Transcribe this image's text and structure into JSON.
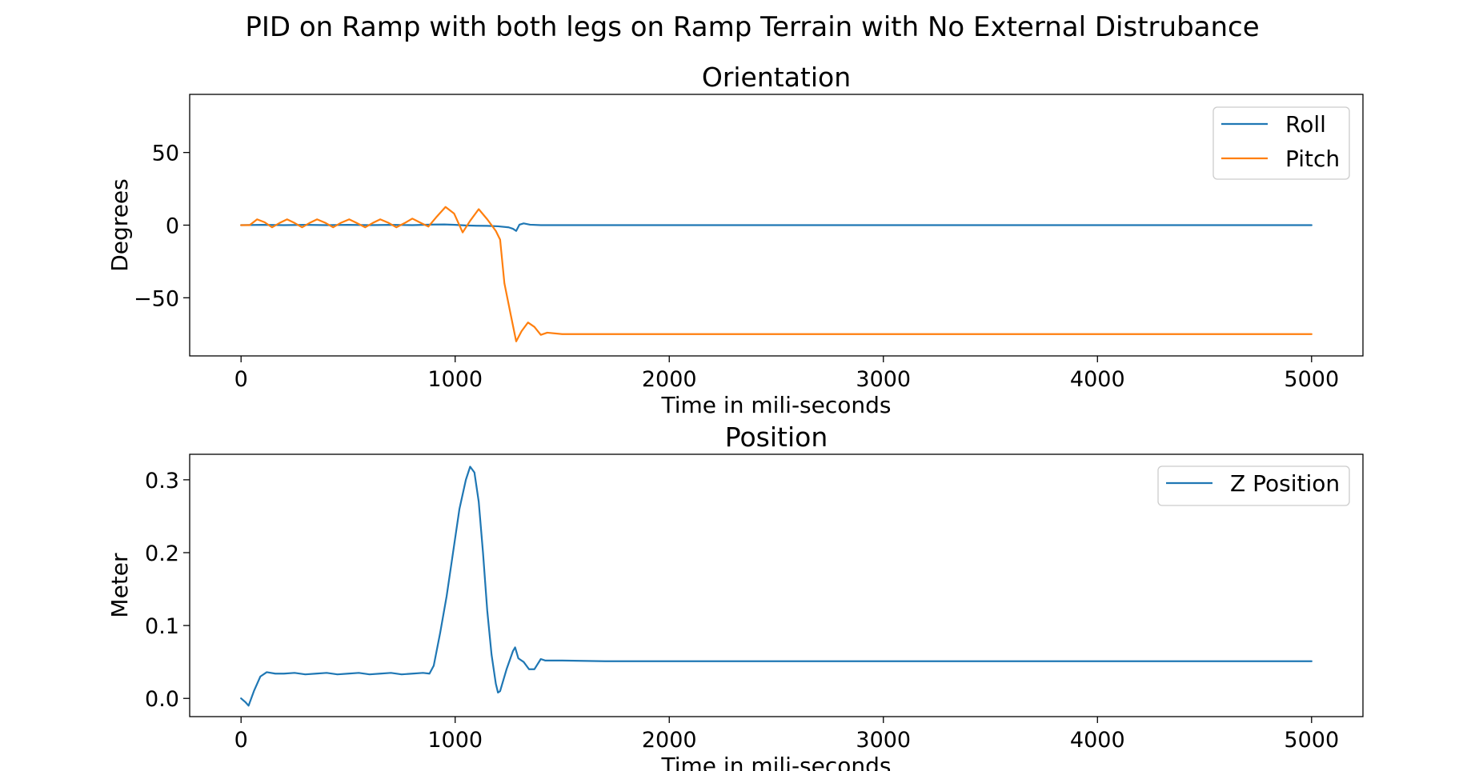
{
  "figure": {
    "title": "PID on Ramp with both legs on Ramp Terrain with No External Distrubance"
  },
  "colors": {
    "roll": "#1f77b4",
    "pitch": "#ff7f0e",
    "z_position": "#1f77b4",
    "axes": "#000000"
  },
  "chart_data": [
    {
      "type": "line",
      "title": "Orientation",
      "xlabel": "Time in mili-seconds",
      "ylabel": "Degrees",
      "xlim": [
        -240,
        5240
      ],
      "ylim": [
        -90,
        90
      ],
      "xticks": [
        0,
        1000,
        2000,
        3000,
        4000,
        5000
      ],
      "xtick_labels": [
        "0",
        "1000",
        "2000",
        "3000",
        "4000",
        "5000"
      ],
      "yticks": [
        50,
        0,
        -50
      ],
      "ytick_labels": [
        "50",
        "0",
        "−50"
      ],
      "grid": false,
      "legend_position": "top-right",
      "series": [
        {
          "name": "Roll",
          "color": "#1f77b4",
          "x": [
            0,
            100,
            200,
            300,
            400,
            500,
            600,
            700,
            800,
            900,
            950,
            1000,
            1050,
            1100,
            1150,
            1200,
            1250,
            1270,
            1285,
            1300,
            1320,
            1350,
            1400,
            1450,
            1500,
            2000,
            3000,
            4000,
            5000
          ],
          "y": [
            0,
            0.2,
            0,
            0.2,
            0,
            0.2,
            0,
            0.2,
            0,
            0.4,
            0.5,
            0.2,
            -0.2,
            -0.4,
            -0.5,
            -0.8,
            -1.5,
            -2.5,
            -4,
            0.3,
            1.2,
            0.3,
            0,
            0,
            0,
            0,
            0,
            0,
            0
          ]
        },
        {
          "name": "Pitch",
          "color": "#ff7f0e",
          "x": [
            0,
            40,
            75,
            110,
            145,
            180,
            215,
            250,
            285,
            320,
            355,
            395,
            430,
            465,
            505,
            540,
            580,
            615,
            650,
            690,
            725,
            765,
            800,
            840,
            875,
            915,
            955,
            995,
            1035,
            1070,
            1110,
            1150,
            1170,
            1190,
            1210,
            1230,
            1260,
            1285,
            1310,
            1340,
            1370,
            1400,
            1430,
            1500,
            1700,
            2000,
            3000,
            4000,
            5000
          ],
          "y": [
            0,
            0,
            4,
            2,
            -1.5,
            1.5,
            4,
            1.5,
            -1.5,
            1.5,
            4,
            1.5,
            -1.5,
            1.5,
            4,
            1.5,
            -1.5,
            1.5,
            4,
            1.5,
            -1.5,
            1.5,
            4.5,
            1.5,
            -1,
            6,
            12.5,
            8,
            -5,
            3,
            11,
            4,
            0,
            -4,
            -10,
            -40,
            -62,
            -80,
            -73,
            -67,
            -70,
            -75.5,
            -74,
            -75,
            -75,
            -75,
            -75,
            -75,
            -75
          ]
        }
      ]
    },
    {
      "type": "line",
      "title": "Position",
      "xlabel": "Time in mili-seconds",
      "ylabel": "Meter",
      "xlim": [
        -240,
        5240
      ],
      "ylim": [
        -0.025,
        0.335
      ],
      "xticks": [
        0,
        1000,
        2000,
        3000,
        4000,
        5000
      ],
      "xtick_labels": [
        "0",
        "1000",
        "2000",
        "3000",
        "4000",
        "5000"
      ],
      "yticks": [
        0.3,
        0.2,
        0.1,
        0.0
      ],
      "ytick_labels": [
        "0.3",
        "0.2",
        "0.1",
        "0.0"
      ],
      "grid": false,
      "legend_position": "top-right",
      "series": [
        {
          "name": "Z Position",
          "color": "#1f77b4",
          "x": [
            0,
            20,
            35,
            60,
            90,
            120,
            160,
            200,
            250,
            300,
            350,
            400,
            450,
            500,
            550,
            600,
            650,
            700,
            750,
            800,
            850,
            880,
            900,
            930,
            960,
            990,
            1020,
            1050,
            1070,
            1090,
            1110,
            1130,
            1150,
            1170,
            1190,
            1200,
            1210,
            1240,
            1270,
            1280,
            1295,
            1320,
            1345,
            1370,
            1400,
            1420,
            1450,
            1500,
            1700,
            2000,
            3000,
            4000,
            5000
          ],
          "y": [
            0,
            -0.005,
            -0.01,
            0.01,
            0.03,
            0.036,
            0.034,
            0.034,
            0.035,
            0.033,
            0.034,
            0.035,
            0.033,
            0.034,
            0.035,
            0.033,
            0.034,
            0.035,
            0.033,
            0.034,
            0.035,
            0.034,
            0.045,
            0.09,
            0.14,
            0.2,
            0.26,
            0.3,
            0.318,
            0.31,
            0.27,
            0.2,
            0.12,
            0.06,
            0.02,
            0.008,
            0.01,
            0.04,
            0.065,
            0.07,
            0.055,
            0.05,
            0.04,
            0.04,
            0.054,
            0.052,
            0.052,
            0.052,
            0.051,
            0.051,
            0.051,
            0.051,
            0.051
          ]
        }
      ]
    }
  ]
}
